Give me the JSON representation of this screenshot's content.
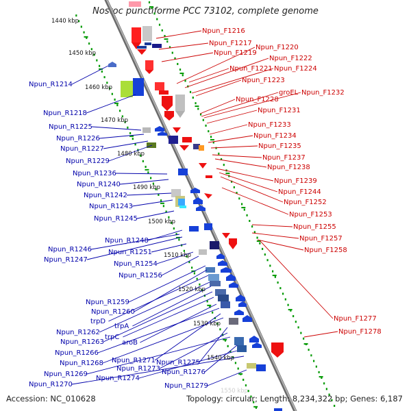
{
  "title": "Nostoc punctiforme PCC 73102, complete genome",
  "footer": {
    "accession": "Accession: NC_010628",
    "summary": "Topology: circular; Length: 8,234,322 bp; Genes: 6,187"
  },
  "colors": {
    "plus_label": "#cc0000",
    "minus_label": "#0000aa",
    "backbone": "#8c8c8c",
    "ticks": "#009900"
  },
  "kbp_labels": [
    "1440 kbp",
    "1450 kbp",
    "1460 kbp",
    "1470 kbp",
    "1480 kbp",
    "1490 kbp",
    "1500 kbp",
    "1510 kbp",
    "1520 kbp",
    "1530 kbp",
    "1540 kbp",
    "1550 kbp"
  ],
  "right_labels": [
    "Npun_F1216",
    "Npun_F1217",
    "Npun_F1219",
    "Npun_F1220",
    "Npun_F1222",
    "Npun_F1221",
    "Npun_F1224",
    "Npun_F1223",
    "Npun_F1228",
    "groEL",
    "Npun_F1232",
    "Npun_F1231",
    "Npun_F1233",
    "Npun_F1234",
    "Npun_F1235",
    "Npun_F1237",
    "Npun_F1238",
    "Npun_F1239",
    "Npun_F1244",
    "Npun_F1252",
    "Npun_F1253",
    "Npun_F1255",
    "Npun_F1257",
    "Npun_F1258",
    "Npun_F1277",
    "Npun_F1278"
  ],
  "left_labels": [
    "Npun_R1214",
    "Npun_R1218",
    "Npun_R1225",
    "Npun_R1226",
    "Npun_R1227",
    "Npun_R1229",
    "Npun_R1236",
    "Npun_R1240",
    "Npun_R1242",
    "Npun_R1243",
    "Npun_R1245",
    "Npun_R1248",
    "Npun_R1246",
    "Npun_R1247",
    "Npun_R1251",
    "Npun_R1254",
    "Npun_R1256",
    "Npun_R1259",
    "Npun_R1260",
    "trpD",
    "Npun_R1262",
    "trpA",
    "Npun_R1263",
    "trpC",
    "aroB",
    "Npun_R1266",
    "Npun_R1271",
    "Npun_R1268",
    "Npun_R1275",
    "Npun_R1273",
    "Npun_R1269",
    "Npun_R1276",
    "Npun_R1274",
    "Npun_R1270",
    "Npun_R1279"
  ]
}
